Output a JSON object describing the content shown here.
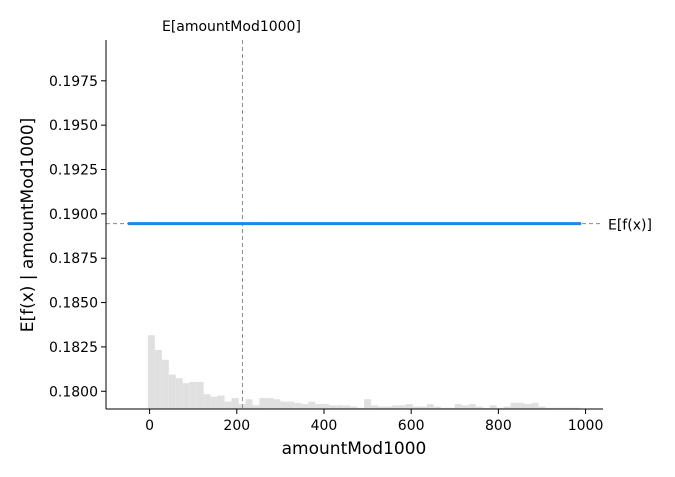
{
  "chart_data": {
    "type": "line",
    "xlabel": "amountMod1000",
    "ylabel": "E[f(x) | amountMod1000]",
    "xlim": [
      -100,
      1040
    ],
    "ylim": [
      0.179,
      0.1998
    ],
    "x_ticks": [
      0,
      200,
      400,
      600,
      800,
      1000
    ],
    "y_ticks": [
      0.18,
      0.1825,
      0.185,
      0.1875,
      0.19,
      0.1925,
      0.195,
      0.1975
    ],
    "y_tick_labels": [
      "0.1800",
      "0.1825",
      "0.1850",
      "0.1875",
      "0.1900",
      "0.1925",
      "0.1950",
      "0.1975"
    ],
    "series": [
      {
        "x": [
          -50,
          990
        ],
        "y": [
          0.18945,
          0.18945
        ],
        "color": "#1e88e5"
      }
    ],
    "expected_value_x": 213,
    "expected_value_x_label": "E[amountMod1000]",
    "expected_value_y": 0.18945,
    "expected_value_y_label": "E[f(x)]",
    "histogram": {
      "color": "#e0e0e0",
      "bin_width": 16,
      "max_ylim_fraction": 0.2,
      "bins": [
        {
          "x": -4,
          "h": 60
        },
        {
          "x": 12,
          "h": 48
        },
        {
          "x": 28,
          "h": 40
        },
        {
          "x": 44,
          "h": 28
        },
        {
          "x": 60,
          "h": 25
        },
        {
          "x": 76,
          "h": 21
        },
        {
          "x": 92,
          "h": 22
        },
        {
          "x": 108,
          "h": 22
        },
        {
          "x": 124,
          "h": 12
        },
        {
          "x": 140,
          "h": 10
        },
        {
          "x": 156,
          "h": 11
        },
        {
          "x": 172,
          "h": 6
        },
        {
          "x": 188,
          "h": 9
        },
        {
          "x": 204,
          "h": 4
        },
        {
          "x": 220,
          "h": 8
        },
        {
          "x": 236,
          "h": 3
        },
        {
          "x": 252,
          "h": 9
        },
        {
          "x": 268,
          "h": 9
        },
        {
          "x": 284,
          "h": 8
        },
        {
          "x": 300,
          "h": 6
        },
        {
          "x": 316,
          "h": 6
        },
        {
          "x": 332,
          "h": 5
        },
        {
          "x": 348,
          "h": 4
        },
        {
          "x": 364,
          "h": 6
        },
        {
          "x": 380,
          "h": 4
        },
        {
          "x": 396,
          "h": 4
        },
        {
          "x": 412,
          "h": 3
        },
        {
          "x": 428,
          "h": 3
        },
        {
          "x": 444,
          "h": 3
        },
        {
          "x": 460,
          "h": 2
        },
        {
          "x": 476,
          "h": 1
        },
        {
          "x": 492,
          "h": 8
        },
        {
          "x": 508,
          "h": 3
        },
        {
          "x": 524,
          "h": 2
        },
        {
          "x": 540,
          "h": 2
        },
        {
          "x": 556,
          "h": 3
        },
        {
          "x": 572,
          "h": 3
        },
        {
          "x": 588,
          "h": 4
        },
        {
          "x": 604,
          "h": 2
        },
        {
          "x": 620,
          "h": 2
        },
        {
          "x": 636,
          "h": 4
        },
        {
          "x": 652,
          "h": 2
        },
        {
          "x": 668,
          "h": 1
        },
        {
          "x": 684,
          "h": 1
        },
        {
          "x": 700,
          "h": 4
        },
        {
          "x": 716,
          "h": 3
        },
        {
          "x": 732,
          "h": 4
        },
        {
          "x": 748,
          "h": 2
        },
        {
          "x": 764,
          "h": 1
        },
        {
          "x": 780,
          "h": 3
        },
        {
          "x": 796,
          "h": 1
        },
        {
          "x": 812,
          "h": 2
        },
        {
          "x": 828,
          "h": 5
        },
        {
          "x": 844,
          "h": 5
        },
        {
          "x": 860,
          "h": 4
        },
        {
          "x": 876,
          "h": 5
        },
        {
          "x": 892,
          "h": 2
        },
        {
          "x": 908,
          "h": 1
        },
        {
          "x": 924,
          "h": 1
        },
        {
          "x": 940,
          "h": 1
        },
        {
          "x": 956,
          "h": 1
        },
        {
          "x": 972,
          "h": 1
        }
      ]
    }
  }
}
